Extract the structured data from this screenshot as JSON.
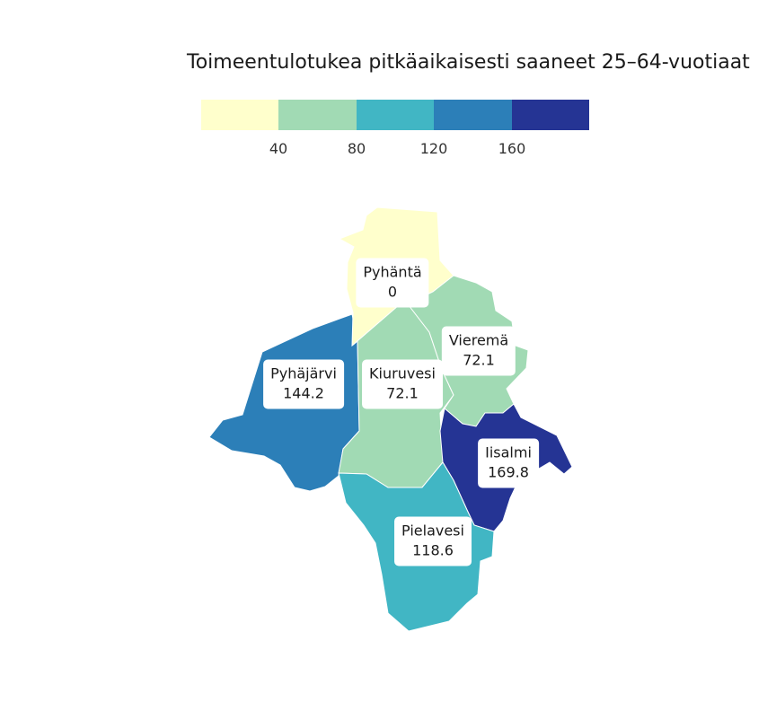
{
  "title": "Toimeentulotukea pitkäaikaisesti saaneet 25–64-vuotiaat",
  "legend": {
    "colors": [
      "#ffffcc",
      "#a1dab4",
      "#41b6c4",
      "#2c7fb8",
      "#253494"
    ],
    "ticks": [
      "40",
      "80",
      "120",
      "160"
    ]
  },
  "regions": [
    {
      "name": "Pyhäntä",
      "value": "0",
      "color": "#ffffcc"
    },
    {
      "name": "Vieremä",
      "value": "72.1",
      "color": "#a1dab4"
    },
    {
      "name": "Kiuruvesi",
      "value": "72.1",
      "color": "#a1dab4"
    },
    {
      "name": "Pyhäjärvi",
      "value": "144.2",
      "color": "#2c7fb8"
    },
    {
      "name": "Iisalmi",
      "value": "169.8",
      "color": "#253494"
    },
    {
      "name": "Pielavesi",
      "value": "118.6",
      "color": "#41b6c4"
    }
  ]
}
